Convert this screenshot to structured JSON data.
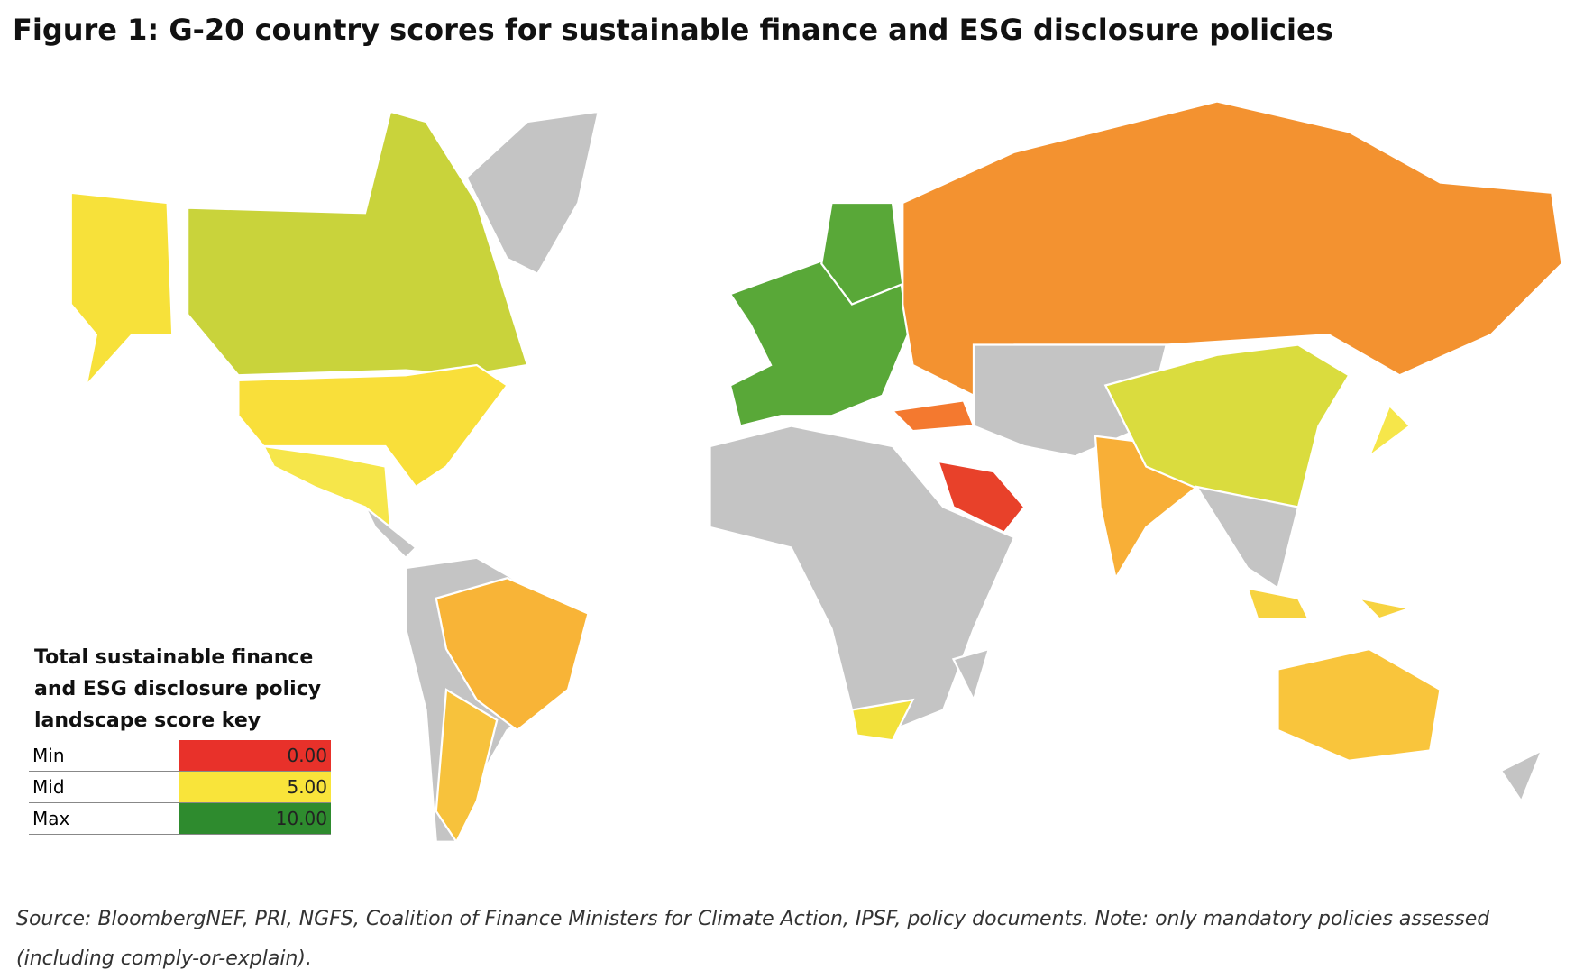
{
  "header": {
    "title": "Figure 1: G-20 country scores for sustainable finance and ESG disclosure policies"
  },
  "legend": {
    "title": "Total sustainable finance and ESG disclosure policy landscape score key",
    "rows": [
      {
        "label": "Min",
        "value": "0.00",
        "color": "#e8312a"
      },
      {
        "label": "Mid",
        "value": "5.00",
        "color": "#f9e43a"
      },
      {
        "label": "Max",
        "value": "10.00",
        "color": "#2e8b2e"
      }
    ]
  },
  "footer": {
    "source": "Source: BloombergNEF, PRI, NGFS, Coalition of Finance Ministers for Climate Action, IPSF, policy documents. Note: only mandatory policies assessed (including comply-or-explain)."
  }
}
